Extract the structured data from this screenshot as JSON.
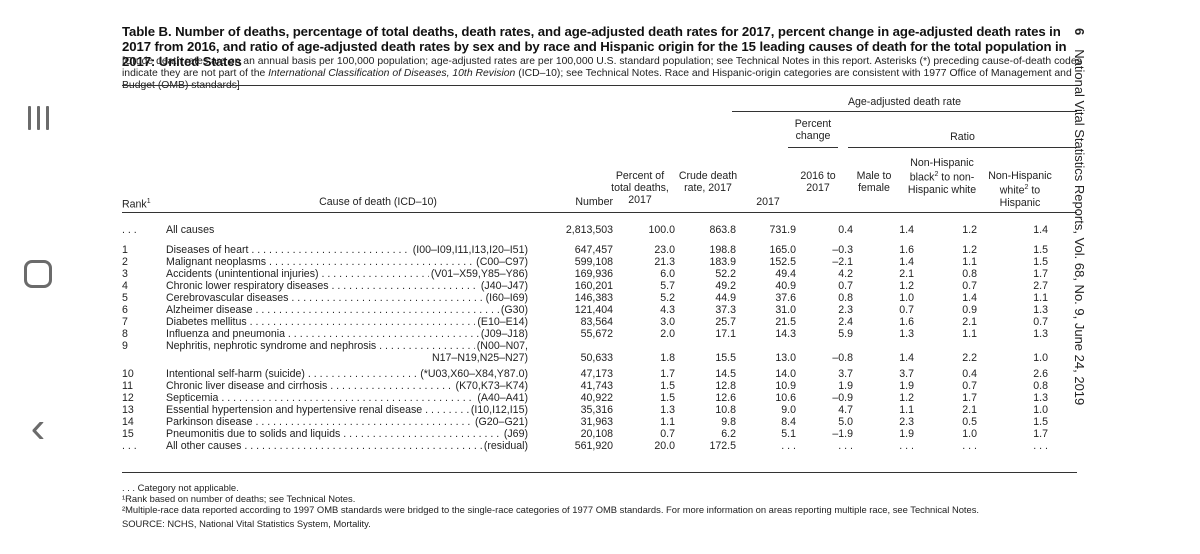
{
  "nav": {
    "menu_icon": "recent-apps-icon",
    "home_icon": "home-icon",
    "back_icon": "back-chevron-icon",
    "back_glyph": "‹"
  },
  "page_number": "6",
  "running_head": "National Vital Statistics Reports, Vol. 68, No. 9, June 24, 2019",
  "title": "Table B. Number of deaths, percentage of total deaths, death rates, and age-adjusted death rates for 2017, percent change in age-adjusted death rates in 2017 from 2016, and ratio of age-adjusted death rates by sex and by race and Hispanic origin for the 15 leading causes of death for the total population in 2017: United States",
  "subtitle_a": "[Crude death rates are on an annual basis per 100,000 population; age-adjusted rates are per 100,000 U.S. standard population; see Technical Notes in this report.  Asterisks (*) preceding cause-of-death codes indicate they are not part of the ",
  "subtitle_b": "International Classification of Diseases, 10th Revision",
  "subtitle_c": " (ICD–10); see Technical Notes. Race and Hispanic-origin categories are consistent with 1977 Office of Management and Budget (OMB) standards]",
  "headers": {
    "aadr_group": "Age-adjusted death rate",
    "percent_change": "Percent change",
    "ratio": "Ratio",
    "rank": "Rank",
    "rank_sup": "1",
    "cause": "Cause of death (ICD–10)",
    "number": "Number",
    "pct_total": "Percent of total deaths, 2017",
    "crude": "Crude death rate, 2017",
    "aadr_2017": "2017",
    "change_years": "2016 to 2017",
    "male_female": "Male to female",
    "nhb_nhw_a": "Non-Hispanic black",
    "nhb_nhw_sup": "2",
    "nhb_nhw_b": " to non-Hispanic white",
    "nhw_hisp_a": "Non-Hispanic white",
    "nhw_hisp_sup": "2",
    "nhw_hisp_b": " to Hispanic"
  },
  "rows": [
    {
      "rank": ". . .",
      "cause": "All causes",
      "code": "",
      "number": "2,813,503",
      "pct": "100.0",
      "crude": "863.8",
      "aadr": "731.9",
      "chg": "0.4",
      "male": "1.4",
      "nhb": "1.2",
      "nhw": "1.4"
    },
    {
      "rank": "1",
      "cause": "Diseases of heart",
      "code": "(I00–I09,I11,I13,I20–I51)",
      "number": "647,457",
      "pct": "23.0",
      "crude": "198.8",
      "aadr": "165.0",
      "chg": "–0.3",
      "male": "1.6",
      "nhb": "1.2",
      "nhw": "1.5"
    },
    {
      "rank": "2",
      "cause": "Malignant neoplasms",
      "code": "(C00–C97)",
      "number": "599,108",
      "pct": "21.3",
      "crude": "183.9",
      "aadr": "152.5",
      "chg": "–2.1",
      "male": "1.4",
      "nhb": "1.1",
      "nhw": "1.5"
    },
    {
      "rank": "3",
      "cause": "Accidents (unintentional injuries)",
      "code": "(V01–X59,Y85–Y86)",
      "number": "169,936",
      "pct": "6.0",
      "crude": "52.2",
      "aadr": "49.4",
      "chg": "4.2",
      "male": "2.1",
      "nhb": "0.8",
      "nhw": "1.7"
    },
    {
      "rank": "4",
      "cause": "Chronic lower respiratory diseases",
      "code": "(J40–J47)",
      "number": "160,201",
      "pct": "5.7",
      "crude": "49.2",
      "aadr": "40.9",
      "chg": "0.7",
      "male": "1.2",
      "nhb": "0.7",
      "nhw": "2.7"
    },
    {
      "rank": "5",
      "cause": "Cerebrovascular diseases",
      "code": "(I60–I69)",
      "number": "146,383",
      "pct": "5.2",
      "crude": "44.9",
      "aadr": "37.6",
      "chg": "0.8",
      "male": "1.0",
      "nhb": "1.4",
      "nhw": "1.1"
    },
    {
      "rank": "6",
      "cause": "Alzheimer disease",
      "code": "(G30)",
      "number": "121,404",
      "pct": "4.3",
      "crude": "37.3",
      "aadr": "31.0",
      "chg": "2.3",
      "male": "0.7",
      "nhb": "0.9",
      "nhw": "1.3"
    },
    {
      "rank": "7",
      "cause": "Diabetes mellitus",
      "code": "(E10–E14)",
      "number": "83,564",
      "pct": "3.0",
      "crude": "25.7",
      "aadr": "21.5",
      "chg": "2.4",
      "male": "1.6",
      "nhb": "2.1",
      "nhw": "0.7"
    },
    {
      "rank": "8",
      "cause": "Influenza and pneumonia",
      "code": "(J09–J18)",
      "number": "55,672",
      "pct": "2.0",
      "crude": "17.1",
      "aadr": "14.3",
      "chg": "5.9",
      "male": "1.3",
      "nhb": "1.1",
      "nhw": "1.3"
    },
    {
      "rank": "9",
      "cause": "Nephritis, nephrotic syndrome and nephrosis",
      "code": "(N00–N07,",
      "number": "",
      "pct": "",
      "crude": "",
      "aadr": "",
      "chg": "",
      "male": "",
      "nhb": "",
      "nhw": ""
    },
    {
      "rank": "",
      "cause": "",
      "code": "N17–N19,N25–N27)",
      "number": "50,633",
      "pct": "1.8",
      "crude": "15.5",
      "aadr": "13.0",
      "chg": "–0.8",
      "male": "1.4",
      "nhb": "2.2",
      "nhw": "1.0"
    },
    {
      "rank": "10",
      "cause": "Intentional self-harm (suicide)",
      "code": "(*U03,X60–X84,Y87.0)",
      "number": "47,173",
      "pct": "1.7",
      "crude": "14.5",
      "aadr": "14.0",
      "chg": "3.7",
      "male": "3.7",
      "nhb": "0.4",
      "nhw": "2.6"
    },
    {
      "rank": "11",
      "cause": "Chronic liver disease and cirrhosis",
      "code": "(K70,K73–K74)",
      "number": "41,743",
      "pct": "1.5",
      "crude": "12.8",
      "aadr": "10.9",
      "chg": "1.9",
      "male": "1.9",
      "nhb": "0.7",
      "nhw": "0.8"
    },
    {
      "rank": "12",
      "cause": "Septicemia",
      "code": "(A40–A41)",
      "number": "40,922",
      "pct": "1.5",
      "crude": "12.6",
      "aadr": "10.6",
      "chg": "–0.9",
      "male": "1.2",
      "nhb": "1.7",
      "nhw": "1.3"
    },
    {
      "rank": "13",
      "cause": "Essential hypertension and hypertensive renal disease",
      "code": "(I10,I12,I15)",
      "number": "35,316",
      "pct": "1.3",
      "crude": "10.8",
      "aadr": "9.0",
      "chg": "4.7",
      "male": "1.1",
      "nhb": "2.1",
      "nhw": "1.0"
    },
    {
      "rank": "14",
      "cause": "Parkinson disease",
      "code": "(G20–G21)",
      "number": "31,963",
      "pct": "1.1",
      "crude": "9.8",
      "aadr": "8.4",
      "chg": "5.0",
      "male": "2.3",
      "nhb": "0.5",
      "nhw": "1.5"
    },
    {
      "rank": "15",
      "cause": "Pneumonitis due to solids and liquids",
      "code": "(J69)",
      "number": "20,108",
      "pct": "0.7",
      "crude": "6.2",
      "aadr": "5.1",
      "chg": "–1.9",
      "male": "1.9",
      "nhb": "1.0",
      "nhw": "1.7"
    },
    {
      "rank": ". . .",
      "cause": "All other causes",
      "code": "(residual)",
      "number": "561,920",
      "pct": "20.0",
      "crude": "172.5",
      "aadr": ". . .",
      "chg": ". . .",
      "male": ". . .",
      "nhb": ". . .",
      "nhw": ". . ."
    }
  ],
  "footnotes": [
    ". . . Category not applicable.",
    "¹Rank based on number of deaths; see Technical Notes.",
    "²Multiple-race data reported according to 1997 OMB standards were bridged to the single-race categories of 1977 OMB standards. For more information on areas reporting multiple race, see Technical Notes.",
    "SOURCE: NCHS, National Vital Statistics System, Mortality."
  ]
}
